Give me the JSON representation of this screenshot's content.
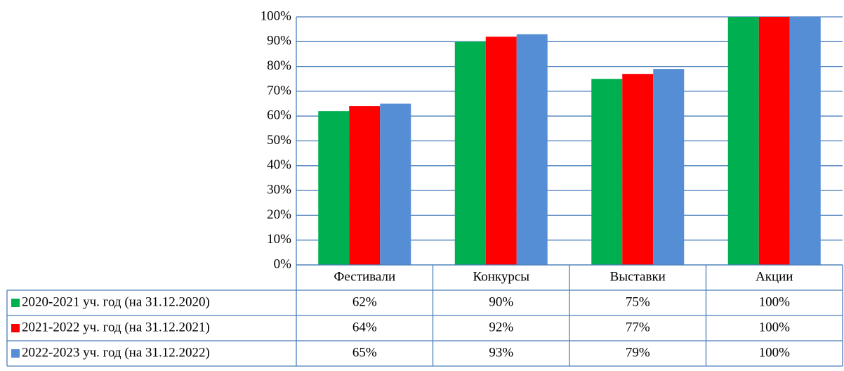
{
  "chart_data": {
    "type": "bar",
    "categories": [
      "Фестивали",
      "Конкурсы",
      "Выставки",
      "Акции"
    ],
    "series": [
      {
        "name": "2020-2021 уч. год (на 31.12.2020)",
        "color": "#00b050",
        "values": [
          62,
          90,
          75,
          100
        ],
        "value_labels": [
          "62%",
          "90%",
          "75%",
          "100%"
        ]
      },
      {
        "name": "2021-2022 уч. год (на 31.12.2021)",
        "color": "#ff0000",
        "values": [
          64,
          92,
          77,
          100
        ],
        "value_labels": [
          "64%",
          "92%",
          "77%",
          "100%"
        ]
      },
      {
        "name": "2022-2023 уч. год (на 31.12.2022)",
        "color": "#558ed5",
        "values": [
          65,
          93,
          79,
          100
        ],
        "value_labels": [
          "65%",
          "93%",
          "79%",
          "100%"
        ]
      }
    ],
    "ylim": [
      0,
      100
    ],
    "yticks": [
      {
        "value": 0,
        "label": "0%"
      },
      {
        "value": 10,
        "label": "10%"
      },
      {
        "value": 20,
        "label": "20%"
      },
      {
        "value": 30,
        "label": "30%"
      },
      {
        "value": 40,
        "label": "40%"
      },
      {
        "value": 50,
        "label": "50%"
      },
      {
        "value": 60,
        "label": "60%"
      },
      {
        "value": 70,
        "label": "70%"
      },
      {
        "value": 80,
        "label": "80%"
      },
      {
        "value": 90,
        "label": "90%"
      },
      {
        "value": 100,
        "label": "100%"
      }
    ],
    "grid": true
  }
}
